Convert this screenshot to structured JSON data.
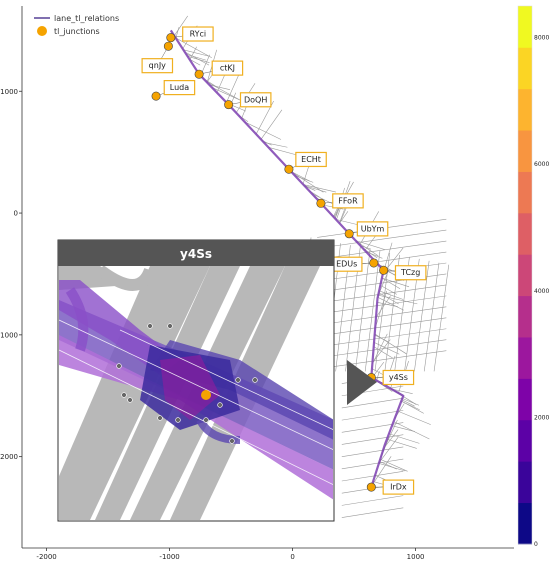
{
  "chart_data": {
    "type": "scatter",
    "xlim": [
      -2200,
      1800
    ],
    "ylim": [
      -2750,
      1700
    ],
    "xticks": [
      -2000,
      -1000,
      0,
      1000
    ],
    "yticks": [
      1000,
      0,
      -1000,
      -2000
    ],
    "xtick_labels": [
      "-2000",
      "-1000",
      "0",
      "1000"
    ],
    "ytick_labels": [
      "1000",
      "0",
      "-1000",
      "-2000"
    ],
    "legend": [
      {
        "name": "lane_tl_relations",
        "marker": "line",
        "color": "#8070b0"
      },
      {
        "name": "tl_junctions",
        "marker": "circle",
        "color": "#f5a300"
      }
    ],
    "junctions": [
      {
        "label": "RYci",
        "x": -990,
        "y": 1440,
        "label_x": -770,
        "label_y": 1470
      },
      {
        "label": "qnJy",
        "x": -1010,
        "y": 1370,
        "label_x": -1100,
        "label_y": 1210
      },
      {
        "label": "ctKJ",
        "x": -760,
        "y": 1140,
        "label_x": -530,
        "label_y": 1190
      },
      {
        "label": "Luda",
        "x": -1110,
        "y": 960,
        "label_x": -920,
        "label_y": 1030
      },
      {
        "label": "DoQH",
        "x": -520,
        "y": 890,
        "label_x": -300,
        "label_y": 930
      },
      {
        "label": "ECHt",
        "x": -30,
        "y": 360,
        "label_x": 150,
        "label_y": 440
      },
      {
        "label": "FFoR",
        "x": 230,
        "y": 80,
        "label_x": 450,
        "label_y": 100
      },
      {
        "label": "UbYm",
        "x": 460,
        "y": -170,
        "label_x": 650,
        "label_y": -130
      },
      {
        "label": "EDUs",
        "x": 660,
        "y": -410,
        "label_x": 440,
        "label_y": -420
      },
      {
        "label": "TCzg",
        "x": 740,
        "y": -470,
        "label_x": 960,
        "label_y": -490
      },
      {
        "label": "y4Ss",
        "x": 640,
        "y": -1350,
        "label_x": 860,
        "label_y": -1350
      },
      {
        "label": "IrDx",
        "x": 640,
        "y": -2250,
        "label_x": 860,
        "label_y": -2250
      }
    ],
    "road_path": [
      [
        -990,
        1500
      ],
      [
        -760,
        1140
      ],
      [
        -520,
        890
      ],
      [
        -30,
        360
      ],
      [
        230,
        80
      ],
      [
        460,
        -170
      ],
      [
        740,
        -470
      ],
      [
        690,
        -700
      ],
      [
        640,
        -1350
      ],
      [
        900,
        -1500
      ],
      [
        750,
        -1900
      ],
      [
        640,
        -2250
      ]
    ]
  },
  "colorbar": {
    "min": 0,
    "max": 8500,
    "ticks": [
      0,
      2000,
      4000,
      6000,
      8000
    ],
    "tick_labels": [
      "0",
      "2000",
      "4000",
      "6000",
      "8000"
    ],
    "colors": [
      "#0d0887",
      "#3a049a",
      "#5c01a6",
      "#7e03a8",
      "#9c179e",
      "#b52f8c",
      "#cc4778",
      "#de5f65",
      "#ed7953",
      "#f89540",
      "#fdb42f",
      "#fbd524",
      "#f0f921"
    ]
  },
  "inset": {
    "title": "y4Ss"
  }
}
